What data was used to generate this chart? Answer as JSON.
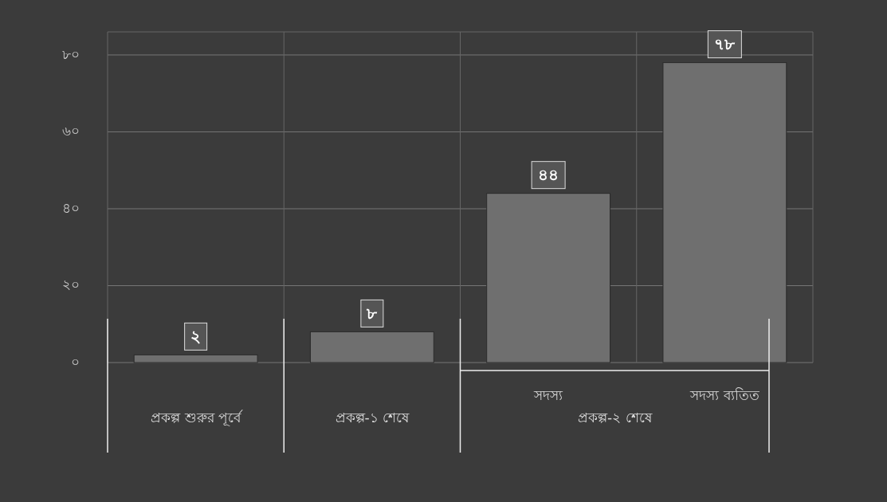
{
  "chart_data": {
    "type": "bar",
    "categories": [
      "প্রকল্প শুরুর পূর্বে",
      "প্রকল্প-১ শেষে",
      "সদস্য",
      "সদস্য ব্যতিত"
    ],
    "values": [
      2,
      8,
      44,
      78
    ],
    "value_labels": [
      "২",
      "৮",
      "৪৪",
      "৭৮"
    ],
    "color": "#6f6f6f",
    "ylim": [
      0,
      86
    ],
    "yticks": [
      {
        "value": 0,
        "label": "০"
      },
      {
        "value": 20,
        "label": "২০"
      },
      {
        "value": 40,
        "label": "৪০"
      },
      {
        "value": 60,
        "label": "৬০"
      },
      {
        "value": 80,
        "label": "৮০"
      }
    ],
    "grid": "y",
    "annotations": [
      "প্রকল্প-২ শেষে"
    ]
  }
}
